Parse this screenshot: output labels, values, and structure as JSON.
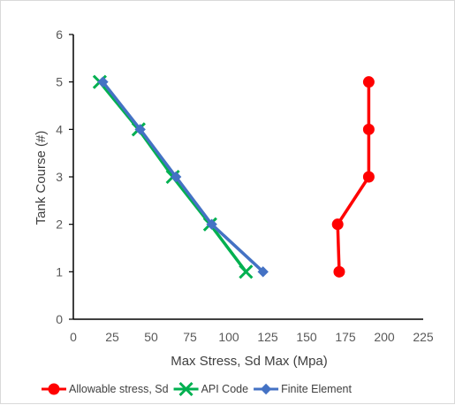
{
  "chart_data": {
    "type": "line",
    "title": "",
    "xlabel": "Max Stress, Sd Max (Mpa)",
    "ylabel": "Tank Course (#)",
    "xlim": [
      0,
      225
    ],
    "ylim": [
      0,
      6
    ],
    "xticks": [
      0,
      25,
      50,
      75,
      100,
      125,
      150,
      175,
      200,
      225
    ],
    "yticks": [
      0,
      1,
      2,
      3,
      4,
      5,
      6
    ],
    "grid": false,
    "legend_position": "bottom",
    "series": [
      {
        "name": "Allowable stress, Sd",
        "color": "#ff0000",
        "marker": "circle",
        "x": [
          171,
          170,
          190,
          190,
          190
        ],
        "y": [
          1,
          2,
          3,
          4,
          5
        ]
      },
      {
        "name": "API Code",
        "color": "#00b050",
        "marker": "x",
        "x": [
          111,
          88,
          64,
          42,
          17
        ],
        "y": [
          1,
          2,
          3,
          4,
          5
        ]
      },
      {
        "name": "Finite Element",
        "color": "#4472c4",
        "marker": "diamond",
        "x": [
          122,
          89,
          66,
          43,
          19
        ],
        "y": [
          1,
          2,
          3,
          4,
          5
        ]
      }
    ]
  }
}
